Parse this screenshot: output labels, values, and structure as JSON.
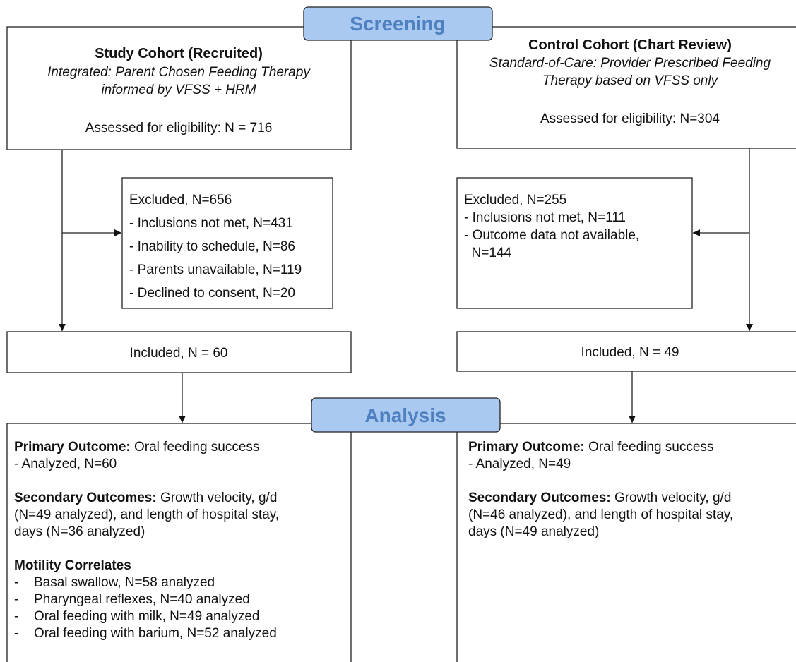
{
  "screening": "Screening",
  "analysis": "Analysis",
  "study_cohort": {
    "title": "Study Cohort (Recruited)",
    "description": [
      "Integrated: Parent Chosen Feeding Therapy",
      "informed by VFSS + HRM"
    ],
    "assessed": "Assessed for eligibility: N = 716",
    "excluded": [
      "Excluded, N=656",
      "- Inclusions not met, N=431",
      "- Inability to schedule, N=86",
      "- Parents unavailable, N=119",
      "- Declined to consent, N=20"
    ],
    "included": "Included, N = 60",
    "outcomes": [
      [
        {
          "bold": "Primary Outcome:",
          "text": " Oral feeding success"
        },
        {
          "text": "- Analyzed, N=60"
        }
      ],
      [
        {
          "bold": "Secondary Outcomes:",
          "text": " Growth velocity, g/d"
        },
        {
          "text": "(N=49 analyzed), and length of hospital stay,"
        },
        {
          "text": "days (N=36 analyzed)"
        }
      ],
      [
        {
          "bold": "Motility Correlates"
        },
        {
          "bullet": "-",
          "text": "Basal swallow, N=58 analyzed"
        },
        {
          "bullet": "-",
          "text": "Pharyngeal reflexes, N=40 analyzed"
        },
        {
          "bullet": "-",
          "text": "Oral feeding with milk, N=49 analyzed"
        },
        {
          "bullet": "-",
          "text": "Oral feeding with barium, N=52 analyzed"
        }
      ]
    ]
  },
  "control_cohort": {
    "title": "Control Cohort (Chart Review)",
    "description": [
      "Standard-of-Care: Provider Prescribed Feeding",
      "Therapy based on VFSS only"
    ],
    "assessed": "Assessed for eligibility: N=304",
    "excluded": [
      "Excluded, N=255",
      "- Inclusions not met, N=111",
      "- Outcome data not available,",
      "  N=144"
    ],
    "included": "Included, N = 49",
    "outcomes": [
      [
        {
          "bold": "Primary Outcome:",
          "text": " Oral feeding success"
        },
        {
          "text": "- Analyzed, N=49"
        }
      ],
      [
        {
          "bold": "Secondary Outcomes:",
          "text": " Growth velocity, g/d"
        },
        {
          "text": "(N=46 analyzed), and length of hospital stay,"
        },
        {
          "text": "days (N=49 analyzed)"
        }
      ]
    ]
  }
}
